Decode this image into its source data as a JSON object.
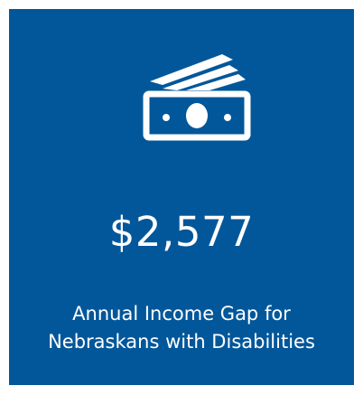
{
  "card": {
    "background": "#02579a",
    "text_color": "#ffffff",
    "icon": "money-bills-icon",
    "amount": "$2,577",
    "caption_line1": "Annual Income Gap for",
    "caption_line2": "Nebraskans with Disabilities"
  }
}
